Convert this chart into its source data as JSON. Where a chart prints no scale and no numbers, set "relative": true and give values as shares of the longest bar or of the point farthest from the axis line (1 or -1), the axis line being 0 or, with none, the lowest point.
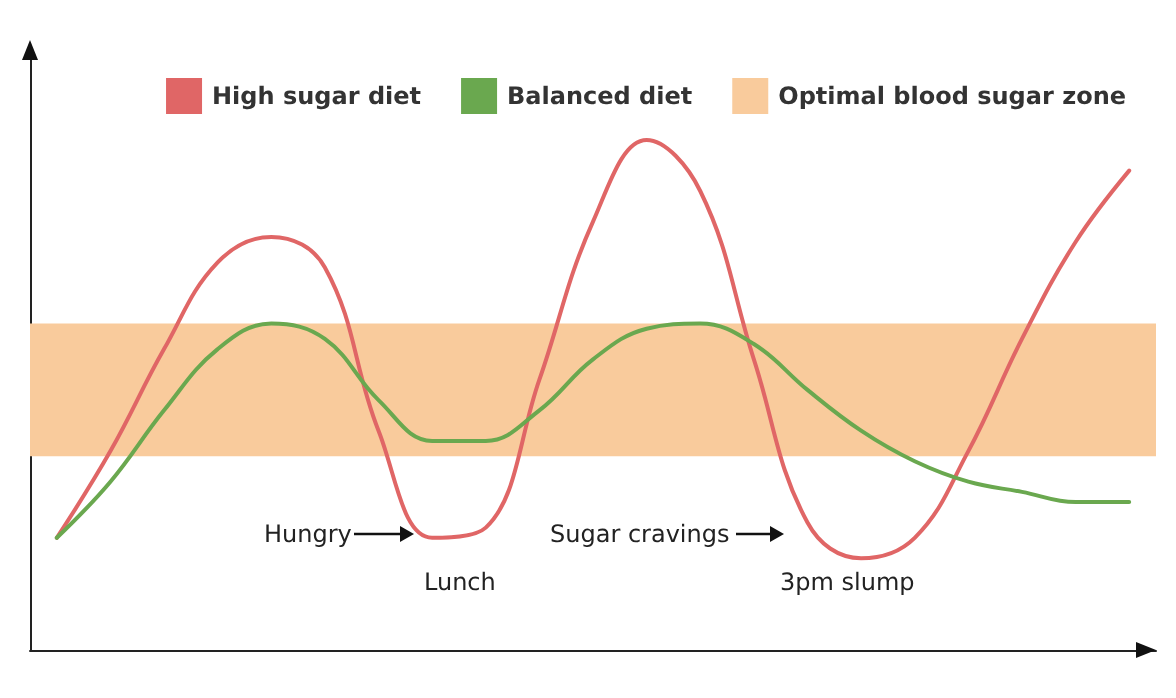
{
  "chart_data": {
    "type": "line",
    "relative": true,
    "categories": [
      null,
      null,
      null,
      null,
      null,
      null,
      null,
      null,
      null,
      null,
      null,
      null,
      null,
      null,
      null,
      null,
      null,
      null,
      null,
      null,
      null
    ],
    "series": [
      {
        "name": "High sugar diet",
        "color": "#e06666",
        "values": [
          0.22,
          0.39,
          0.59,
          0.76,
          0.81,
          0.75,
          0.43,
          0.22,
          0.24,
          0.53,
          0.84,
          1.0,
          0.9,
          0.57,
          0.25,
          0.18,
          0.22,
          0.39,
          0.61,
          0.8,
          0.94
        ]
      },
      {
        "name": "Balanced diet",
        "color": "#6aa84f",
        "values": [
          0.22,
          0.33,
          0.47,
          0.59,
          0.64,
          0.61,
          0.49,
          0.41,
          0.41,
          0.47,
          0.57,
          0.63,
          0.64,
          0.6,
          0.51,
          0.43,
          0.37,
          0.33,
          0.31,
          0.29,
          0.29
        ]
      }
    ],
    "bands": [
      {
        "axis": "y",
        "from": 0.38,
        "to": 0.64,
        "label": "Optimal blood sugar zone",
        "color": "#f9cb9c"
      }
    ],
    "annotations": [
      "Hungry",
      "Lunch",
      "Sugar cravings",
      "3pm slump"
    ],
    "legend": "top right",
    "grid": false,
    "marker": "none",
    "line_style": "solid"
  }
}
